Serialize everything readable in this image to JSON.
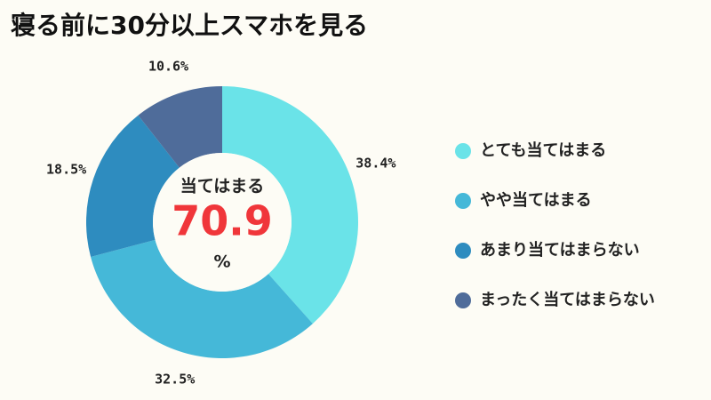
{
  "chart_data": {
    "type": "donut",
    "title": "寝る前に30分以上スマホを見る",
    "categories": [
      "とても当てはまる",
      "やや当てはまる",
      "あまり当てはまらない",
      "まったく当てはまらない"
    ],
    "values": [
      38.4,
      32.5,
      18.5,
      10.6
    ],
    "value_labels": [
      "38.4%",
      "32.5%",
      "18.5%",
      "10.6%"
    ],
    "colors": [
      "#6ae3e8",
      "#45b8d8",
      "#2e8cbf",
      "#4f6c9a"
    ],
    "center_label": "当てはまる",
    "center_value": 70.9,
    "center_unit": "%",
    "legend": "right"
  }
}
